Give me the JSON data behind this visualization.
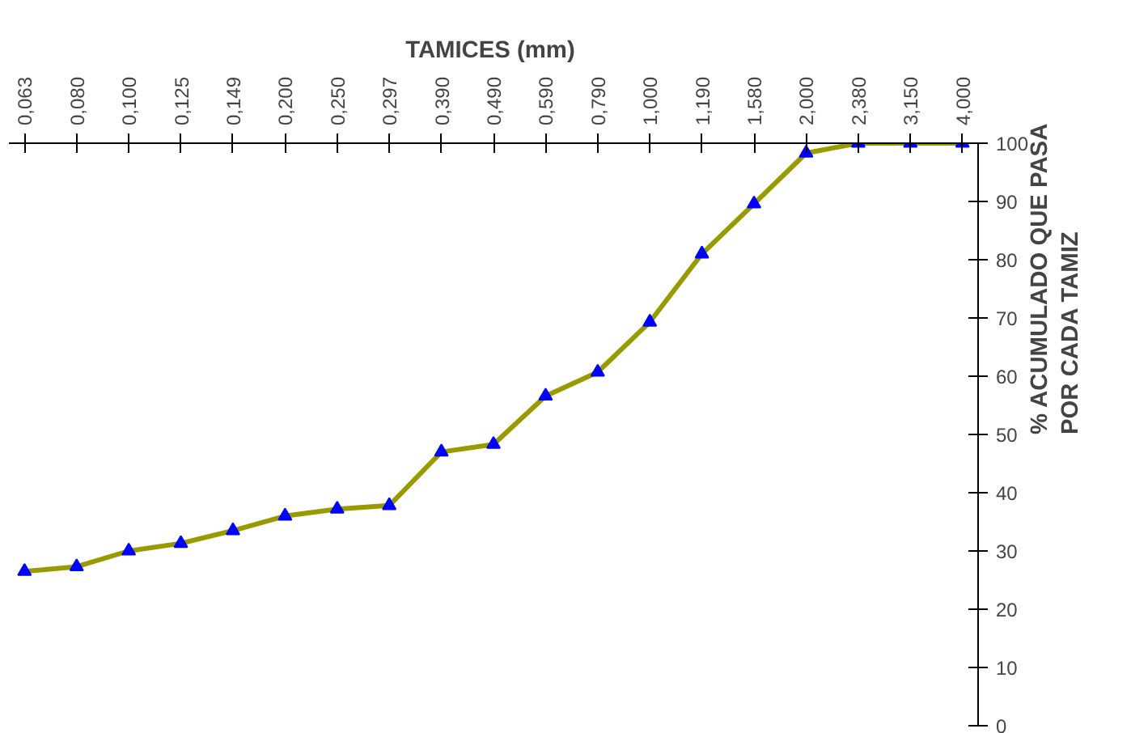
{
  "chart_data": {
    "type": "line",
    "xlabel": "TAMICES  (mm)",
    "ylabel": "%  ACUMULADO QUE PASA\nPOR CADA TAMIZ",
    "categories": [
      "0,063",
      "0,080",
      "0,100",
      "0,125",
      "0,149",
      "0,200",
      "0,250",
      "0,297",
      "0,390",
      "0,490",
      "0,590",
      "0,790",
      "1,000",
      "1,190",
      "1,580",
      "2,000",
      "2,380",
      "3,150",
      "4,000"
    ],
    "series": [
      {
        "color": "#999900",
        "values": [
          26.5,
          27.3,
          30,
          31.3,
          33.5,
          36,
          37.2,
          37.8,
          47,
          48.3,
          56.6,
          60.7,
          69.3,
          81,
          89.6,
          98.3,
          100,
          100,
          100
        ]
      }
    ],
    "ylim": [
      0,
      100
    ],
    "yticks": [
      0,
      10,
      20,
      30,
      40,
      50,
      60,
      70,
      80,
      90,
      100
    ],
    "marker": "triangle",
    "line_style": "solid",
    "grid": false
  }
}
